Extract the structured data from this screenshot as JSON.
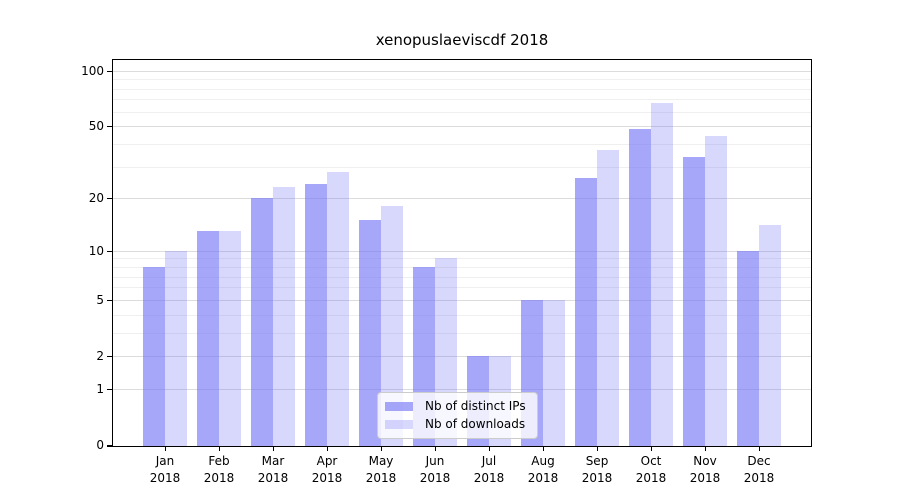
{
  "chart_data": {
    "type": "bar",
    "title": "xenopuslaeviscdf 2018",
    "categories": [
      "Jan",
      "Feb",
      "Mar",
      "Apr",
      "May",
      "Jun",
      "Jul",
      "Aug",
      "Sep",
      "Oct",
      "Nov",
      "Dec"
    ],
    "category_year": "2018",
    "series": [
      {
        "name": "Nb of distinct IPs",
        "color": "rgba(116,116,246,0.63)",
        "values": [
          8,
          13,
          20,
          24,
          15,
          8,
          2,
          5,
          26,
          48,
          34,
          10
        ]
      },
      {
        "name": "Nb of downloads",
        "color": "rgba(116,116,246,0.28)",
        "values": [
          10,
          13,
          23,
          28,
          18,
          9,
          2,
          5,
          37,
          67,
          44,
          14
        ]
      }
    ],
    "xlabel": "",
    "ylabel": "",
    "y_ticks": [
      0,
      1,
      2,
      5,
      10,
      20,
      50,
      100
    ],
    "y_minor_gridlines": [
      3,
      4,
      6,
      7,
      8,
      9,
      30,
      40,
      60,
      70,
      80,
      90
    ],
    "y_scale": "log10(1+x)",
    "ylim": [
      0,
      116
    ],
    "grid": true,
    "legend_position": "lower center",
    "colors": {
      "bar_base": "#7474F6",
      "grid_major": "#dcdcdc",
      "grid_minor": "#efefef",
      "axis": "#000000",
      "background": "#ffffff"
    }
  }
}
